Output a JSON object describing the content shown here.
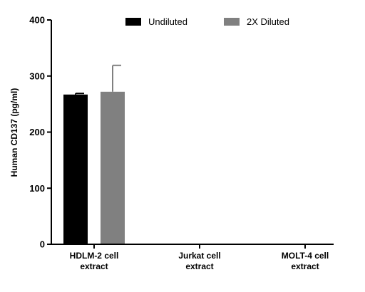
{
  "chart_data": {
    "type": "bar",
    "ylabel": "Human CD137 (pg/ml)",
    "ylim": [
      0,
      400
    ],
    "yticks": [
      0,
      100,
      200,
      300,
      400
    ],
    "categories": [
      [
        "HDLM-2 cell",
        "extract"
      ],
      [
        "Jurkat cell",
        "extract"
      ],
      [
        "MOLT-4 cell",
        "extract"
      ]
    ],
    "series": [
      {
        "name": "Undiluted",
        "color": "#000000",
        "values": [
          267,
          0,
          0
        ],
        "errors": [
          2,
          0,
          0
        ]
      },
      {
        "name": "2X Diluted",
        "color": "#808080",
        "values": [
          272,
          0,
          0
        ],
        "errors": [
          47,
          0,
          0
        ]
      }
    ],
    "legend_position": "top",
    "grid": false
  }
}
